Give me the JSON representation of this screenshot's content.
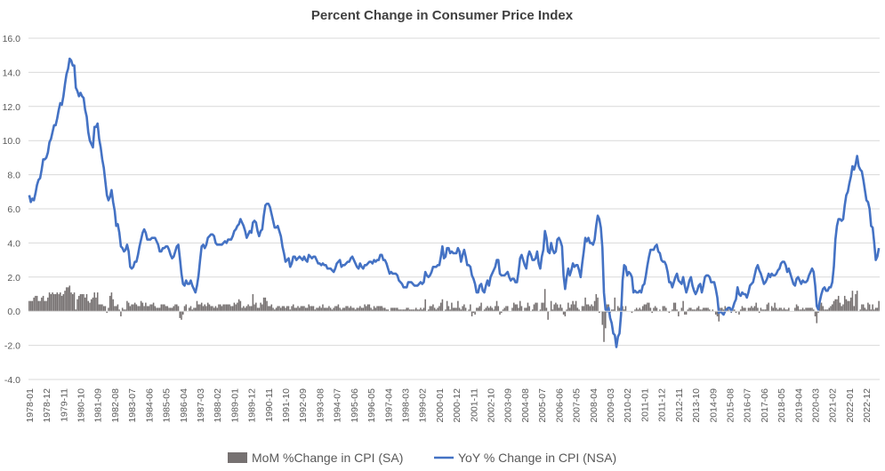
{
  "chart_data": {
    "type": "bar+line",
    "title": "Percent Change in Consumer Price Index",
    "x_start": "1978-01",
    "x_end": "2023-08",
    "frequency": "monthly",
    "ylim": [
      -4,
      16
    ],
    "y_ticks": [
      "-4.0",
      "-2.0",
      "0.0",
      "2.0",
      "4.0",
      "6.0",
      "8.0",
      "10.0",
      "12.0",
      "14.0",
      "16.0"
    ],
    "grid": "horizontal",
    "legend_position": "bottom",
    "x_tick_labels": [
      "1978-01",
      "1978-12",
      "1979-11",
      "1980-10",
      "1981-09",
      "1982-08",
      "1983-07",
      "1984-06",
      "1985-05",
      "1986-04",
      "1987-03",
      "1988-02",
      "1989-01",
      "1989-12",
      "1990-11",
      "1991-10",
      "1992-09",
      "1993-08",
      "1994-07",
      "1995-06",
      "1996-05",
      "1997-04",
      "1998-03",
      "1999-02",
      "2000-01",
      "2000-12",
      "2001-11",
      "2002-10",
      "2003-09",
      "2004-08",
      "2005-07",
      "2006-06",
      "2007-05",
      "2008-04",
      "2009-03",
      "2010-02",
      "2011-01",
      "2011-12",
      "2012-11",
      "2013-10",
      "2014-09",
      "2015-08",
      "2016-07",
      "2017-06",
      "2018-05",
      "2019-04",
      "2020-03",
      "2021-02",
      "2022-01",
      "2022-12"
    ],
    "series": [
      {
        "name": "MoM %Change in CPI (SA)",
        "type": "bar",
        "color": "#767171",
        "values": [
          0.6,
          0.6,
          0.6,
          0.8,
          0.9,
          0.9,
          0.6,
          0.6,
          0.8,
          0.9,
          0.6,
          0.6,
          0.8,
          1.1,
          1.0,
          1.1,
          1.0,
          1.0,
          1.1,
          1.0,
          1.1,
          0.9,
          1.0,
          1.2,
          1.4,
          1.4,
          1.5,
          1.1,
          1.0,
          1.1,
          0.1,
          0.7,
          0.9,
          1.0,
          1.0,
          1.0,
          0.8,
          1.0,
          0.6,
          0.5,
          0.7,
          0.8,
          1.1,
          0.8,
          1.1,
          0.4,
          0.4,
          0.4,
          0.3,
          0.3,
          -0.1,
          0.2,
          0.9,
          1.1,
          0.7,
          0.3,
          0.3,
          0.4,
          0.1,
          -0.3,
          0.2,
          0.1,
          0.1,
          0.6,
          0.5,
          0.3,
          0.4,
          0.4,
          0.5,
          0.4,
          0.3,
          0.3,
          0.6,
          0.5,
          0.3,
          0.5,
          0.3,
          0.3,
          0.4,
          0.4,
          0.5,
          0.3,
          0.2,
          0.2,
          0.2,
          0.4,
          0.4,
          0.4,
          0.3,
          0.3,
          0.2,
          0.2,
          0.2,
          0.3,
          0.4,
          0.4,
          0.3,
          -0.4,
          -0.5,
          -0.2,
          0.3,
          0.4,
          0.0,
          0.2,
          0.3,
          0.1,
          0.2,
          0.2,
          0.6,
          0.4,
          0.4,
          0.5,
          0.3,
          0.4,
          0.3,
          0.5,
          0.4,
          0.3,
          0.3,
          0.2,
          0.3,
          0.2,
          0.4,
          0.4,
          0.3,
          0.4,
          0.4,
          0.4,
          0.4,
          0.4,
          0.3,
          0.3,
          0.5,
          0.4,
          0.5,
          0.7,
          0.6,
          0.2,
          0.3,
          0.2,
          0.3,
          0.4,
          0.3,
          0.3,
          1.0,
          0.4,
          0.5,
          0.2,
          0.2,
          0.5,
          0.4,
          0.8,
          0.8,
          0.6,
          0.3,
          0.3,
          0.4,
          0.2,
          0.1,
          0.2,
          0.3,
          0.3,
          0.2,
          0.3,
          0.3,
          0.2,
          0.3,
          0.3,
          0.1,
          0.3,
          0.4,
          0.2,
          0.2,
          0.3,
          0.2,
          0.3,
          0.3,
          0.3,
          0.2,
          0.2,
          0.4,
          0.3,
          0.3,
          0.3,
          0.1,
          0.2,
          0.2,
          0.3,
          0.2,
          0.4,
          0.2,
          0.2,
          0.2,
          0.3,
          0.2,
          0.1,
          0.2,
          0.3,
          0.3,
          0.4,
          0.2,
          0.1,
          0.2,
          0.2,
          0.3,
          0.3,
          0.2,
          0.3,
          0.2,
          0.2,
          0.1,
          0.2,
          0.2,
          0.3,
          0.2,
          0.2,
          0.4,
          0.3,
          0.4,
          0.4,
          0.2,
          0.1,
          0.3,
          0.2,
          0.3,
          0.3,
          0.3,
          0.3,
          0.2,
          0.2,
          0.1,
          0.1,
          0.0,
          0.2,
          0.2,
          0.2,
          0.2,
          0.2,
          0.1,
          0.1,
          0.1,
          0.1,
          0.1,
          0.2,
          0.2,
          0.1,
          0.1,
          0.1,
          0.1,
          0.2,
          0.1,
          0.1,
          0.2,
          0.1,
          0.2,
          0.7,
          0.0,
          0.1,
          0.3,
          0.3,
          0.4,
          0.2,
          0.1,
          0.2,
          0.3,
          0.5,
          0.7,
          0.0,
          0.1,
          0.6,
          0.3,
          0.1,
          0.5,
          0.2,
          0.2,
          0.2,
          0.6,
          0.2,
          0.1,
          0.3,
          0.4,
          0.2,
          0.0,
          0.1,
          0.4,
          -0.3,
          -0.1,
          -0.2,
          0.2,
          0.2,
          0.3,
          0.5,
          0.0,
          0.1,
          0.2,
          0.3,
          0.2,
          0.3,
          0.2,
          0.1,
          0.3,
          0.6,
          0.3,
          -0.2,
          -0.1,
          0.1,
          0.2,
          0.3,
          0.3,
          0.0,
          0.0,
          0.2,
          0.5,
          0.4,
          0.4,
          0.2,
          0.6,
          0.3,
          0.0,
          0.2,
          0.2,
          0.5,
          0.3,
          0.0,
          0.1,
          0.4,
          0.5,
          0.5,
          0.0,
          0.1,
          0.5,
          0.5,
          1.3,
          0.2,
          -0.5,
          0.0,
          0.6,
          0.1,
          0.4,
          0.5,
          0.4,
          0.2,
          0.4,
          0.2,
          -0.2,
          -0.3,
          0.1,
          0.5,
          0.2,
          0.4,
          0.6,
          0.4,
          0.6,
          0.2,
          0.1,
          0.0,
          0.3,
          0.3,
          0.8,
          0.4,
          0.4,
          0.3,
          0.4,
          0.3,
          0.6,
          1.0,
          0.8,
          -0.1,
          0.0,
          -0.8,
          -1.8,
          -1.0,
          0.4,
          0.4,
          -0.1,
          0.1,
          0.1,
          0.8,
          0.0,
          0.3,
          0.2,
          0.3,
          0.3,
          0.1,
          0.3,
          0.0,
          0.0,
          0.0,
          -0.1,
          0.0,
          0.1,
          0.2,
          0.1,
          0.2,
          0.1,
          0.3,
          0.4,
          0.4,
          0.5,
          0.5,
          0.2,
          -0.1,
          0.2,
          0.3,
          0.2,
          0.0,
          0.1,
          0.0,
          0.3,
          0.3,
          0.2,
          0.0,
          -0.1,
          0.0,
          0.1,
          0.5,
          0.5,
          0.1,
          -0.3,
          0.0,
          0.2,
          0.6,
          -0.2,
          -0.2,
          0.1,
          0.2,
          0.2,
          0.1,
          0.1,
          0.1,
          0.2,
          0.3,
          0.1,
          0.1,
          0.2,
          0.2,
          0.2,
          0.2,
          0.1,
          0.0,
          0.1,
          0.0,
          -0.2,
          -0.3,
          -0.6,
          0.2,
          0.2,
          0.1,
          0.3,
          0.2,
          0.2,
          0.0,
          -0.1,
          0.1,
          0.1,
          -0.1,
          0.0,
          -0.2,
          0.1,
          0.3,
          0.2,
          0.2,
          0.0,
          0.2,
          0.2,
          0.3,
          0.2,
          0.3,
          0.5,
          0.2,
          -0.1,
          0.2,
          0.1,
          0.1,
          0.1,
          0.4,
          0.5,
          0.0,
          0.3,
          0.2,
          0.5,
          0.2,
          0.1,
          0.2,
          0.2,
          0.1,
          0.2,
          0.1,
          0.1,
          0.2,
          0.0,
          0.0,
          0.0,
          0.2,
          0.4,
          0.3,
          0.1,
          0.1,
          0.2,
          0.1,
          0.2,
          0.2,
          0.2,
          0.2,
          0.2,
          0.1,
          -0.3,
          -0.7,
          -0.1,
          0.5,
          0.5,
          0.3,
          0.1,
          0.1,
          0.1,
          0.2,
          0.3,
          0.4,
          0.6,
          0.7,
          0.7,
          0.9,
          0.5,
          0.3,
          0.4,
          0.9,
          0.7,
          0.6,
          0.6,
          0.8,
          1.2,
          0.3,
          1.0,
          1.2,
          0.0,
          0.1,
          0.4,
          0.4,
          0.2,
          0.1,
          0.5,
          0.4,
          0.1,
          0.4,
          0.1,
          0.2,
          0.2,
          0.6
        ]
      },
      {
        "name": "YoY % Change in CPI (NSA)",
        "type": "line",
        "color": "#4472C4",
        "values": [
          6.8,
          6.4,
          6.6,
          6.5,
          6.9,
          7.4,
          7.7,
          7.8,
          8.3,
          8.9,
          8.9,
          9.0,
          9.3,
          9.9,
          10.1,
          10.5,
          10.9,
          10.9,
          11.3,
          11.8,
          12.2,
          12.1,
          12.6,
          13.3,
          13.9,
          14.2,
          14.8,
          14.7,
          14.4,
          14.4,
          13.1,
          12.9,
          12.6,
          12.8,
          12.6,
          12.5,
          11.8,
          11.4,
          10.5,
          10.0,
          9.8,
          9.6,
          10.8,
          10.8,
          11.0,
          10.1,
          9.6,
          8.9,
          8.4,
          7.6,
          6.8,
          6.5,
          6.7,
          7.1,
          6.4,
          5.9,
          5.0,
          5.1,
          4.6,
          3.8,
          3.7,
          3.5,
          3.6,
          3.9,
          3.5,
          2.6,
          2.5,
          2.6,
          2.9,
          2.9,
          3.3,
          3.8,
          4.2,
          4.6,
          4.8,
          4.6,
          4.2,
          4.2,
          4.2,
          4.3,
          4.3,
          4.3,
          4.1,
          3.9,
          3.5,
          3.5,
          3.7,
          3.7,
          3.8,
          3.8,
          3.6,
          3.3,
          3.1,
          3.2,
          3.5,
          3.8,
          3.9,
          3.1,
          2.2,
          1.6,
          1.5,
          1.8,
          1.6,
          1.6,
          1.8,
          1.5,
          1.3,
          1.1,
          1.5,
          2.1,
          3.0,
          3.8,
          3.9,
          3.7,
          3.9,
          4.3,
          4.4,
          4.5,
          4.5,
          4.4,
          4.0,
          3.9,
          3.9,
          3.9,
          3.9,
          4.0,
          4.1,
          4.0,
          4.2,
          4.2,
          4.2,
          4.4,
          4.7,
          4.8,
          5.0,
          5.1,
          5.4,
          5.2,
          5.0,
          4.7,
          4.3,
          4.5,
          4.7,
          4.6,
          5.2,
          5.3,
          5.2,
          4.7,
          4.4,
          4.7,
          4.8,
          5.6,
          6.2,
          6.3,
          6.3,
          6.1,
          5.7,
          5.3,
          4.9,
          4.9,
          5.0,
          4.7,
          4.4,
          3.8,
          3.4,
          2.9,
          3.0,
          3.1,
          2.6,
          2.8,
          3.2,
          3.2,
          3.0,
          3.1,
          3.2,
          3.1,
          3.0,
          3.2,
          3.0,
          2.9,
          3.3,
          3.2,
          3.1,
          3.2,
          3.2,
          3.0,
          2.8,
          2.8,
          2.7,
          2.8,
          2.7,
          2.7,
          2.5,
          2.5,
          2.5,
          2.4,
          2.3,
          2.5,
          2.8,
          2.9,
          3.0,
          2.6,
          2.7,
          2.7,
          2.8,
          2.9,
          2.9,
          3.1,
          3.2,
          3.0,
          2.8,
          2.6,
          2.5,
          2.8,
          2.6,
          2.5,
          2.7,
          2.7,
          2.8,
          2.9,
          2.9,
          2.8,
          3.0,
          2.9,
          3.0,
          3.0,
          3.3,
          3.3,
          3.0,
          3.0,
          2.8,
          2.5,
          2.2,
          2.3,
          2.2,
          2.2,
          2.2,
          2.1,
          1.8,
          1.7,
          1.6,
          1.4,
          1.4,
          1.4,
          1.7,
          1.7,
          1.7,
          1.6,
          1.5,
          1.5,
          1.5,
          1.6,
          1.7,
          1.6,
          1.7,
          2.3,
          2.1,
          2.0,
          2.1,
          2.3,
          2.6,
          2.6,
          2.6,
          2.7,
          2.7,
          3.2,
          3.8,
          3.1,
          3.2,
          3.7,
          3.7,
          3.4,
          3.5,
          3.4,
          3.4,
          3.4,
          3.7,
          3.5,
          2.9,
          3.3,
          3.6,
          3.2,
          2.7,
          2.7,
          2.6,
          2.1,
          1.9,
          1.6,
          1.1,
          1.1,
          1.5,
          1.6,
          1.2,
          1.1,
          1.5,
          1.8,
          1.5,
          2.0,
          2.2,
          2.4,
          2.6,
          3.0,
          3.0,
          2.2,
          2.1,
          2.1,
          2.1,
          2.2,
          2.3,
          2.0,
          1.8,
          1.9,
          1.9,
          1.7,
          1.7,
          2.3,
          3.1,
          3.3,
          3.0,
          2.7,
          2.5,
          3.2,
          3.5,
          3.3,
          3.0,
          3.0,
          3.1,
          3.5,
          2.8,
          2.5,
          3.2,
          3.6,
          4.7,
          4.3,
          3.5,
          3.4,
          4.0,
          3.6,
          3.4,
          3.5,
          4.2,
          4.3,
          4.1,
          3.8,
          2.1,
          1.3,
          2.0,
          2.5,
          2.1,
          2.4,
          2.8,
          2.6,
          2.7,
          2.7,
          2.4,
          2.0,
          2.8,
          3.5,
          4.3,
          4.1,
          4.3,
          4.0,
          4.0,
          3.9,
          4.2,
          5.0,
          5.6,
          5.4,
          4.9,
          3.7,
          1.1,
          0.1,
          0.0,
          0.2,
          -0.4,
          -0.7,
          -1.3,
          -1.4,
          -2.1,
          -1.5,
          -1.3,
          -0.2,
          1.8,
          2.7,
          2.6,
          2.1,
          2.3,
          2.2,
          2.0,
          1.1,
          1.2,
          1.1,
          1.1,
          1.2,
          1.1,
          1.5,
          1.6,
          2.1,
          2.7,
          3.2,
          3.6,
          3.6,
          3.6,
          3.8,
          3.9,
          3.5,
          3.4,
          3.0,
          2.9,
          2.9,
          2.7,
          2.3,
          1.7,
          1.7,
          1.4,
          1.7,
          2.0,
          2.2,
          1.8,
          1.7,
          1.6,
          2.0,
          1.5,
          1.1,
          1.4,
          1.8,
          2.0,
          1.5,
          1.2,
          1.0,
          1.2,
          1.5,
          1.6,
          1.1,
          1.5,
          2.0,
          2.1,
          2.1,
          2.0,
          1.7,
          1.7,
          1.7,
          1.3,
          0.8,
          -0.1,
          0.0,
          -0.1,
          -0.2,
          0.0,
          0.1,
          0.2,
          0.2,
          0.0,
          0.2,
          0.5,
          0.7,
          1.4,
          1.0,
          0.9,
          1.1,
          1.0,
          1.0,
          0.8,
          1.1,
          1.5,
          1.6,
          1.7,
          2.1,
          2.5,
          2.7,
          2.4,
          2.2,
          1.9,
          1.6,
          1.7,
          1.9,
          2.2,
          2.0,
          2.2,
          2.1,
          2.1,
          2.2,
          2.4,
          2.5,
          2.8,
          2.9,
          2.9,
          2.7,
          2.3,
          2.5,
          2.2,
          1.9,
          1.6,
          1.5,
          1.9,
          2.0,
          1.8,
          1.6,
          1.8,
          1.7,
          1.7,
          1.8,
          2.1,
          2.3,
          2.5,
          2.3,
          1.5,
          0.3,
          0.1,
          0.6,
          1.0,
          1.3,
          1.4,
          1.2,
          1.2,
          1.4,
          1.4,
          1.7,
          2.6,
          4.2,
          5.0,
          5.4,
          5.4,
          5.3,
          5.4,
          6.2,
          6.8,
          7.0,
          7.5,
          7.9,
          8.5,
          8.3,
          8.6,
          9.1,
          8.5,
          8.3,
          8.2,
          7.7,
          7.1,
          6.5,
          6.4,
          6.0,
          5.0,
          4.9,
          4.0,
          3.0,
          3.2,
          3.7
        ]
      }
    ]
  }
}
